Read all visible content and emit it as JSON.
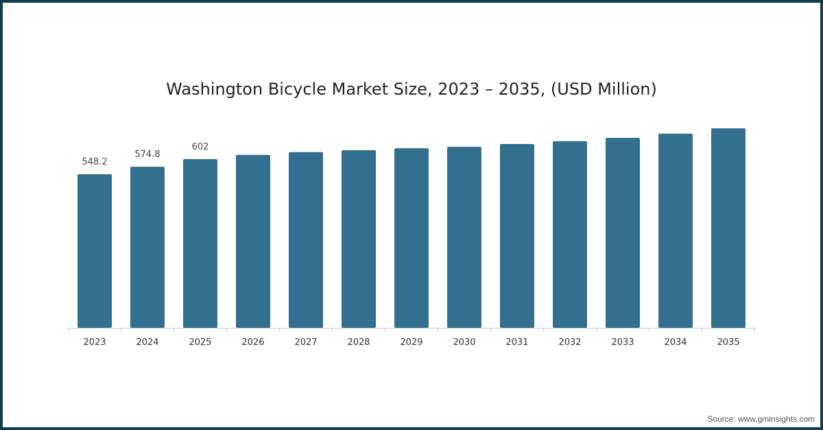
{
  "chart_data": {
    "type": "bar",
    "title": "Washington Bicycle Market Size, 2023 – 2035, (USD Million)",
    "xlabel": "",
    "ylabel": "",
    "categories": [
      "2023",
      "2024",
      "2025",
      "2026",
      "2027",
      "2028",
      "2029",
      "2030",
      "2031",
      "2032",
      "2033",
      "2034",
      "2035"
    ],
    "values": [
      548.2,
      574.8,
      602,
      617,
      627,
      634,
      641,
      646,
      656,
      666,
      678,
      693,
      712
    ],
    "data_labels": [
      "548.2",
      "574.8",
      "602",
      null,
      null,
      null,
      null,
      null,
      null,
      null,
      null,
      null,
      null
    ],
    "ylim": [
      0,
      750
    ],
    "grid": false,
    "bar_color": "#336f8e"
  },
  "source": "Source: www.gminsights.com"
}
